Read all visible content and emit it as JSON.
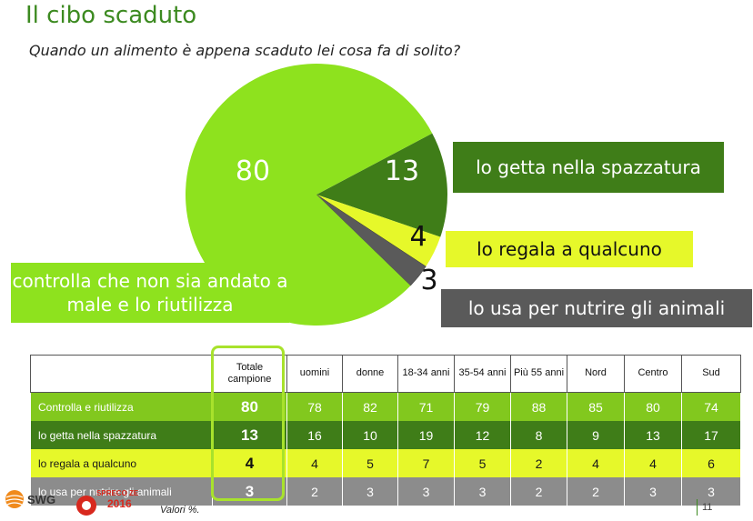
{
  "title": "Il cibo scaduto",
  "subtitle": "Quando un alimento è appena scaduto lei cosa fa di solito?",
  "chart_data": [
    {
      "type": "pie",
      "slices": [
        {
          "label": "controlla che non sia andato a male e lo riutilizza",
          "value": 80,
          "color": "#8ee21e"
        },
        {
          "label": "lo getta nella spazzatura",
          "value": 13,
          "color": "#3f7d18"
        },
        {
          "label": "lo regala a qualcuno",
          "value": 4,
          "color": "#e6f82a"
        },
        {
          "label": "lo usa per nutrire gli animali",
          "value": 3,
          "color": "#5a5a5a"
        }
      ]
    },
    {
      "type": "table",
      "columns": [
        "Totale campione",
        "uomini",
        "donne",
        "18-34 anni",
        "35-54 anni",
        "Più 55 anni",
        "Nord",
        "Centro",
        "Sud"
      ],
      "rows": [
        {
          "label": "Controlla e riutilizza",
          "values": [
            "80",
            "78",
            "82",
            "71",
            "79",
            "88",
            "85",
            "80",
            "74"
          ]
        },
        {
          "label": "lo getta nella spazzatura",
          "values": [
            "13",
            "16",
            "10",
            "19",
            "12",
            "8",
            "9",
            "13",
            "17"
          ]
        },
        {
          "label": "lo regala a qualcuno",
          "values": [
            "4",
            "4",
            "5",
            "7",
            "5",
            "2",
            "4",
            "4",
            "6"
          ]
        },
        {
          "label": "lo usa per nutrire gli animali",
          "values": [
            "3",
            "2",
            "3",
            "3",
            "3",
            "2",
            "2",
            "3",
            "3"
          ]
        }
      ]
    }
  ],
  "footer": {
    "note": "Valori %.",
    "page": "11",
    "swg_logo": "SWG",
    "spreco_logo_line1": "SPRECO ZERO",
    "spreco_logo_line2": "2016"
  }
}
